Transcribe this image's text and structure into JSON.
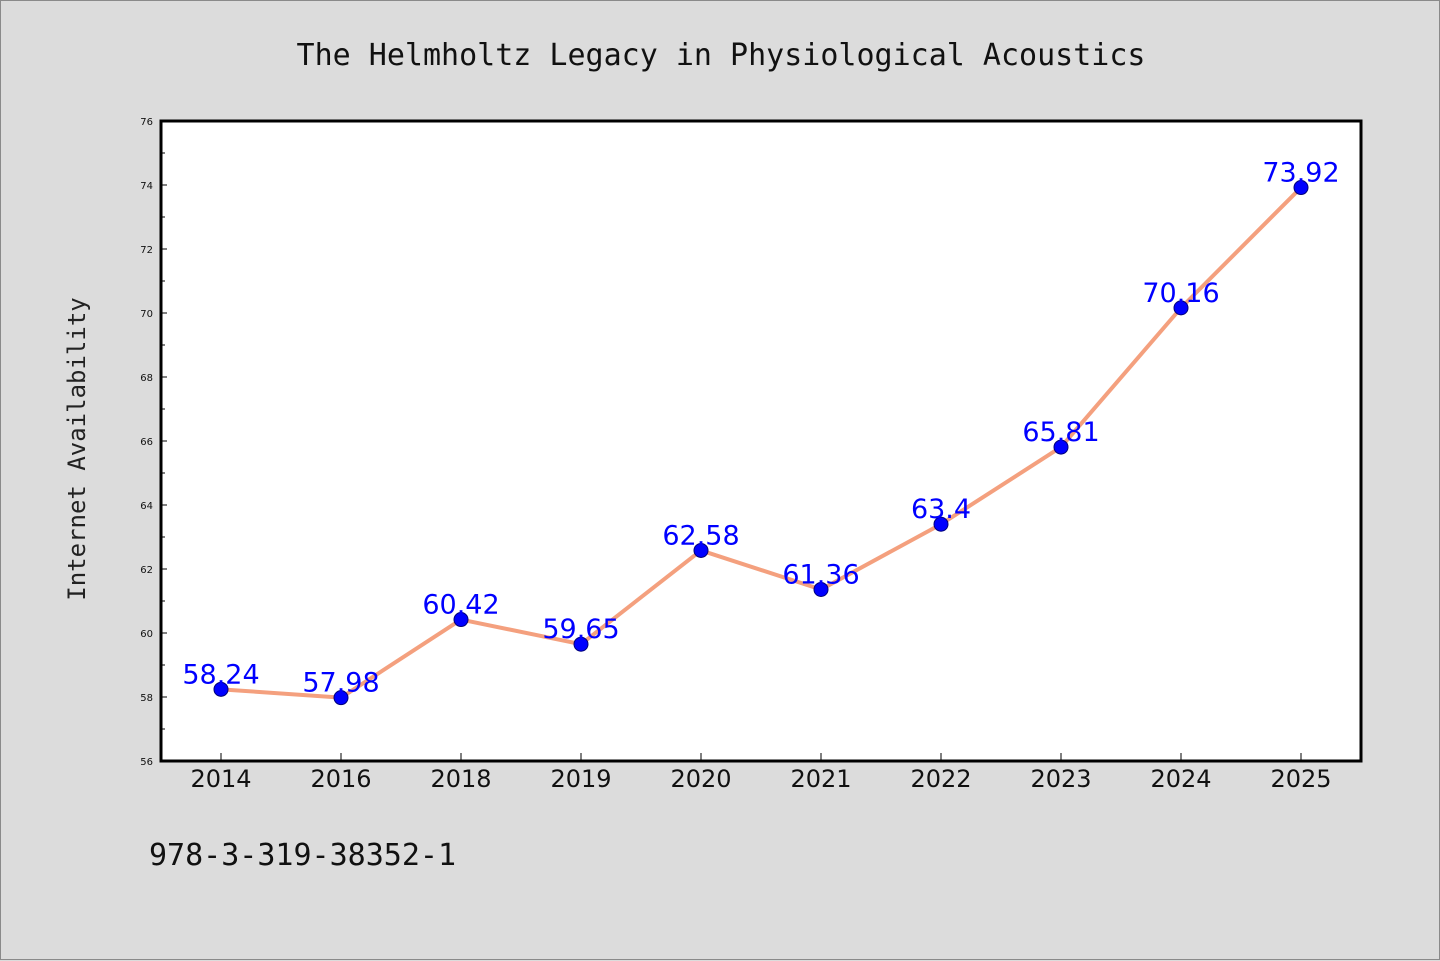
{
  "chart_data": {
    "type": "line",
    "title": "The Helmholtz Legacy in Physiological Acoustics",
    "ylabel": "Internet Availability",
    "xlabel": "",
    "categories": [
      "2014",
      "2016",
      "2018",
      "2019",
      "2020",
      "2021",
      "2022",
      "2023",
      "2024",
      "2025"
    ],
    "series": [
      {
        "values": [
          58.24,
          57.98,
          60.42,
          59.65,
          62.58,
          61.36,
          63.4,
          65.81,
          70.16,
          73.92
        ],
        "data_labels": [
          "58.24",
          "57.98",
          "60.42",
          "59.65",
          "62.58",
          "61.36",
          "63.4",
          "65.81",
          "70.16",
          "73.92"
        ]
      }
    ],
    "ylim": [
      56,
      76
    ],
    "yticks": [
      56,
      58,
      60,
      62,
      64,
      66,
      68,
      70,
      72,
      74,
      76
    ],
    "grid": false,
    "legend": "none",
    "colors": {
      "line": "#f4a07e",
      "marker": "#0000ff",
      "marker_edge": "#00007a",
      "data_label": "#0000ff",
      "background": "#dcdcdc",
      "plot_area": "#ffffff"
    }
  },
  "footnote": "978-3-319-38352-1"
}
